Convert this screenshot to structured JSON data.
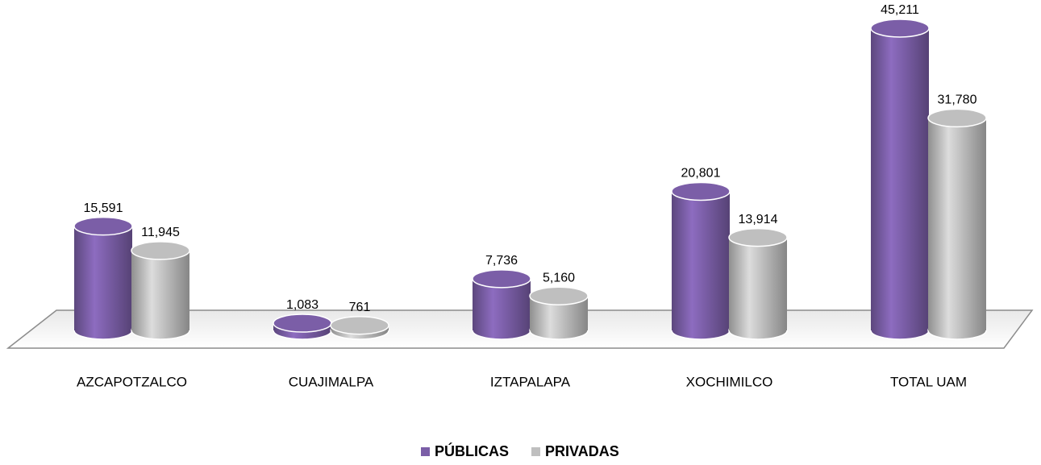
{
  "chart_data": {
    "type": "cylinder-bar",
    "categories": [
      "AZCAPOTZALCO",
      "CUAJIMALPA",
      "IZTAPALAPA",
      "XOCHIMILCO",
      "TOTAL UAM"
    ],
    "series": [
      {
        "name": "PÚBLICAS",
        "color": "#7b5ea7",
        "values": [
          15591,
          1083,
          7736,
          20801,
          45211
        ],
        "value_labels": [
          "15,591",
          "1,083",
          "7,736",
          "20,801",
          "45,211"
        ]
      },
      {
        "name": "PRIVADAS",
        "color": "#bfbfbf",
        "values": [
          11945,
          761,
          5160,
          13914,
          31780
        ],
        "value_labels": [
          "11,945",
          "761",
          "5,160",
          "13,914",
          "31,780"
        ]
      }
    ],
    "legend": "bottom"
  }
}
